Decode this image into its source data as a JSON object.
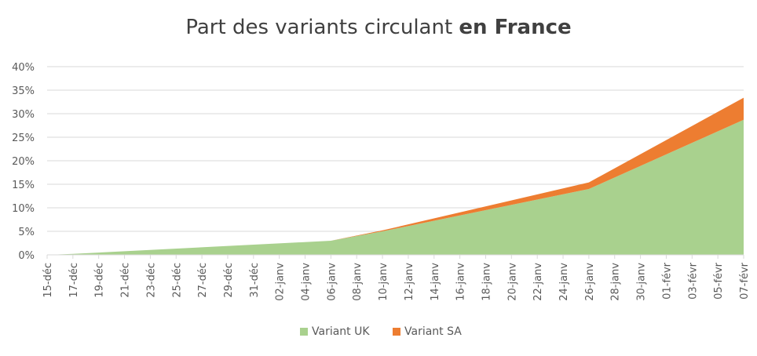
{
  "chart_data": {
    "type": "area",
    "stacked": true,
    "title": {
      "regular": "Part des variants circulant ",
      "bold": "en France"
    },
    "xlabel": "",
    "ylabel": "",
    "ylim": [
      0,
      40
    ],
    "y_tick_labels": [
      "0%",
      "5%",
      "10%",
      "15%",
      "20%",
      "25%",
      "30%",
      "35%",
      "40%"
    ],
    "grid": true,
    "legend_position": "bottom",
    "categories": [
      "15-déc",
      "17-déc",
      "19-déc",
      "21-déc",
      "23-déc",
      "25-déc",
      "27-déc",
      "29-déc",
      "31-déc",
      "02-janv",
      "04-janv",
      "06-janv",
      "08-janv",
      "10-janv",
      "12-janv",
      "14-janv",
      "16-janv",
      "18-janv",
      "20-janv",
      "22-janv",
      "24-janv",
      "26-janv",
      "28-janv",
      "30-janv",
      "01-févr",
      "03-févr",
      "05-févr",
      "07-févr"
    ],
    "series": [
      {
        "name": "Variant UK",
        "color": "#A9D18E",
        "points": [
          {
            "x": "15-déc",
            "y": 0
          },
          {
            "x": "17-déc",
            "y": 0.2
          },
          {
            "x": "06-janv",
            "y": 3.0
          },
          {
            "x": "10-janv",
            "y": 5.0
          },
          {
            "x": "26-janv",
            "y": 14.0
          },
          {
            "x": "07-févr",
            "y": 28.7
          }
        ]
      },
      {
        "name": "Variant SA",
        "color": "#ED7D31",
        "points": [
          {
            "x": "15-déc",
            "y": 0
          },
          {
            "x": "17-déc",
            "y": 0
          },
          {
            "x": "06-janv",
            "y": 0
          },
          {
            "x": "10-janv",
            "y": 0.2
          },
          {
            "x": "26-janv",
            "y": 1.4
          },
          {
            "x": "07-févr",
            "y": 4.7
          }
        ]
      }
    ]
  }
}
